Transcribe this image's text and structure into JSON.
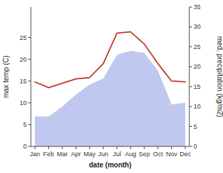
{
  "chart_data": {
    "type": "line",
    "xlabel": "date (month)",
    "ylabel": "max temp (C)",
    "y2label": "med. precipitation (kg/m2)",
    "categories": [
      "Jan",
      "Feb",
      "Mar",
      "Apr",
      "May",
      "Jun",
      "Jul",
      "Aug",
      "Sep",
      "Oct",
      "Nov",
      "Dec"
    ],
    "series": [
      {
        "type": "area",
        "axis": "y2",
        "color": "#c0c8f0",
        "values": [
          7.5,
          7.5,
          10.0,
          13.0,
          15.5,
          17.0,
          23.0,
          24.0,
          23.5,
          19.0,
          10.5,
          11.0
        ]
      },
      {
        "type": "line",
        "color": "#c0392b",
        "values": [
          14.8,
          13.5,
          14.5,
          15.5,
          15.8,
          19.0,
          26.0,
          26.3,
          23.5,
          19.0,
          15.0,
          14.8
        ]
      }
    ],
    "ylim": [
      0,
      32
    ],
    "yticks": [
      0,
      5,
      10,
      15,
      20,
      25
    ],
    "y2lim": [
      0,
      35
    ],
    "y2ticks": [
      0,
      5,
      10,
      15,
      20,
      25,
      30,
      35
    ],
    "grid": false
  }
}
